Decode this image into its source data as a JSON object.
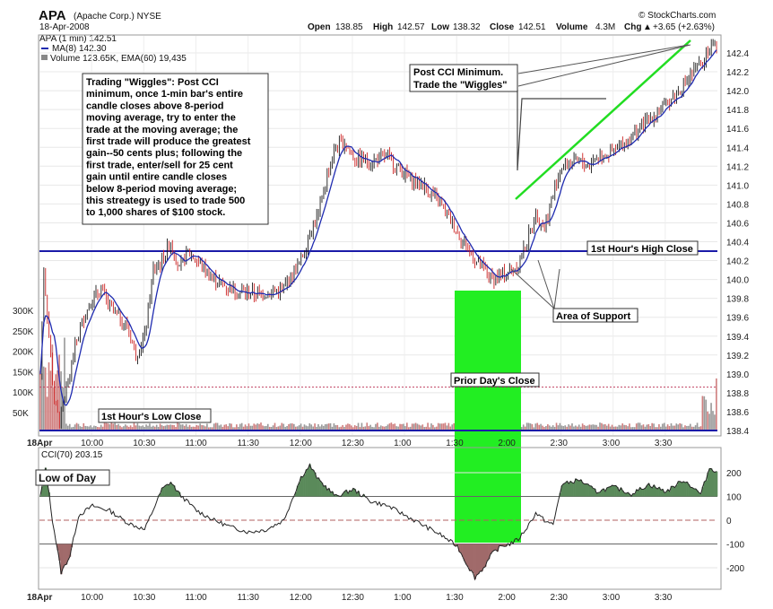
{
  "header": {
    "ticker": "APA",
    "company": "(Apache Corp.) NYSE",
    "date": "18-Apr-2008",
    "source": "© StockCharts.com",
    "open_label": "Open",
    "open": "138.85",
    "high_label": "High",
    "high": "142.57",
    "low_label": "Low",
    "low": "138.32",
    "close_label": "Close",
    "close": "142.51",
    "volume_label": "Volume",
    "volume": "4.3M",
    "chg_label": "Chg",
    "chg": "+3.65 (+2.63%)",
    "chg_arrow": "▲"
  },
  "legend": {
    "series1": "APA (1 min) 142.51",
    "series2": "MA(8) 142.30",
    "series3": "Volume 123.65K, EMA(60) 19,435",
    "cci": "CCI(70) 203.15"
  },
  "annotations": {
    "wiggles_note": [
      "Trading \"Wiggles\":  Post CCI",
      "minimum, once 1-min bar's entire",
      "candle closes above 8-period",
      "moving average, try to enter the",
      "trade at the moving average; the",
      "first trade will produce the greatest",
      "gain--50 cents plus; following the",
      "first trade, enter/sell for 25 cent",
      "gain until entire candle closes",
      "below 8-period moving average;",
      "this streategy is used to trade 500",
      "to 1,000 shares of $100 stock."
    ],
    "post_cci": [
      "Post CCI Minimum.",
      "Trade the \"Wiggles\""
    ],
    "first_hour_high": "1st Hour's High Close",
    "first_hour_low": "1st Hour's Low Close",
    "area_support": "Area of Support",
    "prior_close": "Prior Day's Close",
    "low_of_day": "Low of Day"
  },
  "colors": {
    "up": "#1a1a1a",
    "down": "#cc2222",
    "ma": "#1f2bb0",
    "hline": "#1a1aa8",
    "green_box": "#22ee22",
    "trend": "#22dd22",
    "cci_pos": "#5a8a5a",
    "cci_neg": "#a06a6a",
    "prior_close": "#c04060"
  },
  "chart_data": [
    {
      "type": "candlestick",
      "title": "APA (1 min)",
      "x_ticks": [
        "18Apr",
        "10:00",
        "10:30",
        "11:00",
        "11:30",
        "12:00",
        "12:30",
        "1:00",
        "1:30",
        "2:00",
        "2:30",
        "3:00",
        "3:30"
      ],
      "y_ticks": [
        "142.4",
        "142.2",
        "142.0",
        "141.8",
        "141.6",
        "141.4",
        "141.2",
        "141.0",
        "140.8",
        "140.6",
        "140.4",
        "140.2",
        "140.0",
        "139.8",
        "139.6",
        "139.4",
        "139.2",
        "139.0",
        "138.8",
        "138.6",
        "138.4"
      ],
      "ylim": [
        138.32,
        142.57
      ],
      "volume_ticks": [
        "300K",
        "250K",
        "200K",
        "150K",
        "100K",
        "50K"
      ],
      "path_points": [
        [
          "9:30",
          139.0
        ],
        [
          "9:32",
          140.1
        ],
        [
          "9:35",
          139.4
        ],
        [
          "9:38",
          138.7
        ],
        [
          "9:41",
          138.5
        ],
        [
          "9:45",
          138.8
        ],
        [
          "9:50",
          139.3
        ],
        [
          "9:55",
          139.6
        ],
        [
          "10:00",
          139.8
        ],
        [
          "10:05",
          139.9
        ],
        [
          "10:10",
          139.7
        ],
        [
          "10:15",
          139.6
        ],
        [
          "10:20",
          139.5
        ],
        [
          "10:25",
          139.2
        ],
        [
          "10:30",
          139.4
        ],
        [
          "10:35",
          140.1
        ],
        [
          "10:40",
          140.2
        ],
        [
          "10:45",
          140.4
        ],
        [
          "10:50",
          140.1
        ],
        [
          "10:55",
          140.3
        ],
        [
          "11:00",
          140.2
        ],
        [
          "11:10",
          140.0
        ],
        [
          "11:20",
          139.9
        ],
        [
          "11:30",
          139.85
        ],
        [
          "11:40",
          139.85
        ],
        [
          "11:50",
          139.9
        ],
        [
          "12:00",
          140.2
        ],
        [
          "12:05",
          140.5
        ],
        [
          "12:10",
          140.7
        ],
        [
          "12:15",
          141.1
        ],
        [
          "12:20",
          141.4
        ],
        [
          "12:25",
          141.45
        ],
        [
          "12:30",
          141.3
        ],
        [
          "12:40",
          141.25
        ],
        [
          "12:50",
          141.3
        ],
        [
          "1:00",
          141.1
        ],
        [
          "1:10",
          141.0
        ],
        [
          "1:20",
          140.8
        ],
        [
          "1:30",
          140.5
        ],
        [
          "1:40",
          140.2
        ],
        [
          "1:45",
          140.1
        ],
        [
          "1:50",
          140.0
        ],
        [
          "1:55",
          140.05
        ],
        [
          "2:00",
          140.1
        ],
        [
          "2:05",
          140.15
        ],
        [
          "2:10",
          140.4
        ],
        [
          "2:15",
          140.7
        ],
        [
          "2:20",
          140.55
        ],
        [
          "2:25",
          140.9
        ],
        [
          "2:30",
          141.2
        ],
        [
          "2:40",
          141.25
        ],
        [
          "2:45",
          141.2
        ],
        [
          "2:50",
          141.3
        ],
        [
          "3:00",
          141.35
        ],
        [
          "3:10",
          141.5
        ],
        [
          "3:20",
          141.7
        ],
        [
          "3:30",
          141.85
        ],
        [
          "3:40",
          142.05
        ],
        [
          "3:50",
          142.3
        ],
        [
          "3:55",
          142.45
        ],
        [
          "4:00",
          142.51
        ]
      ],
      "ma8": "MA(8) 142.30",
      "hlines": [
        {
          "label": "1st Hour's High Close",
          "value": 140.3
        },
        {
          "label": "1st Hour's Low Close",
          "value": 138.4
        },
        {
          "label": "Prior Day's Close",
          "value": 138.86
        }
      ]
    },
    {
      "type": "area",
      "title": "CCI(70) 203.15",
      "y_ticks": [
        "200",
        "100",
        "0",
        "-100",
        "-200"
      ],
      "ylim": [
        -260,
        260
      ],
      "points": [
        [
          "9:30",
          100
        ],
        [
          "9:33",
          220
        ],
        [
          "9:37",
          0
        ],
        [
          "9:42",
          -220
        ],
        [
          "9:47",
          -150
        ],
        [
          "9:52",
          20
        ],
        [
          "10:00",
          60
        ],
        [
          "10:10",
          40
        ],
        [
          "10:20",
          -10
        ],
        [
          "10:30",
          -40
        ],
        [
          "10:40",
          130
        ],
        [
          "10:45",
          160
        ],
        [
          "10:50",
          110
        ],
        [
          "11:00",
          40
        ],
        [
          "11:10",
          0
        ],
        [
          "11:20",
          -30
        ],
        [
          "11:30",
          -50
        ],
        [
          "11:40",
          -40
        ],
        [
          "11:50",
          0
        ],
        [
          "12:00",
          180
        ],
        [
          "12:05",
          230
        ],
        [
          "12:10",
          170
        ],
        [
          "12:20",
          100
        ],
        [
          "12:30",
          130
        ],
        [
          "12:40",
          80
        ],
        [
          "12:50",
          60
        ],
        [
          "1:00",
          20
        ],
        [
          "1:10",
          -20
        ],
        [
          "1:20",
          -60
        ],
        [
          "1:30",
          -110
        ],
        [
          "1:35",
          -180
        ],
        [
          "1:40",
          -240
        ],
        [
          "1:45",
          -200
        ],
        [
          "1:50",
          -140
        ],
        [
          "1:55",
          -110
        ],
        [
          "2:00",
          -100
        ],
        [
          "2:05",
          -80
        ],
        [
          "2:10",
          -30
        ],
        [
          "2:15",
          30
        ],
        [
          "2:20",
          0
        ],
        [
          "2:25",
          -20
        ],
        [
          "2:30",
          150
        ],
        [
          "2:40",
          170
        ],
        [
          "2:50",
          120
        ],
        [
          "3:00",
          140
        ],
        [
          "3:10",
          110
        ],
        [
          "3:20",
          150
        ],
        [
          "3:30",
          120
        ],
        [
          "3:40",
          170
        ],
        [
          "3:50",
          110
        ],
        [
          "3:55",
          220
        ],
        [
          "4:00",
          203
        ]
      ]
    }
  ]
}
